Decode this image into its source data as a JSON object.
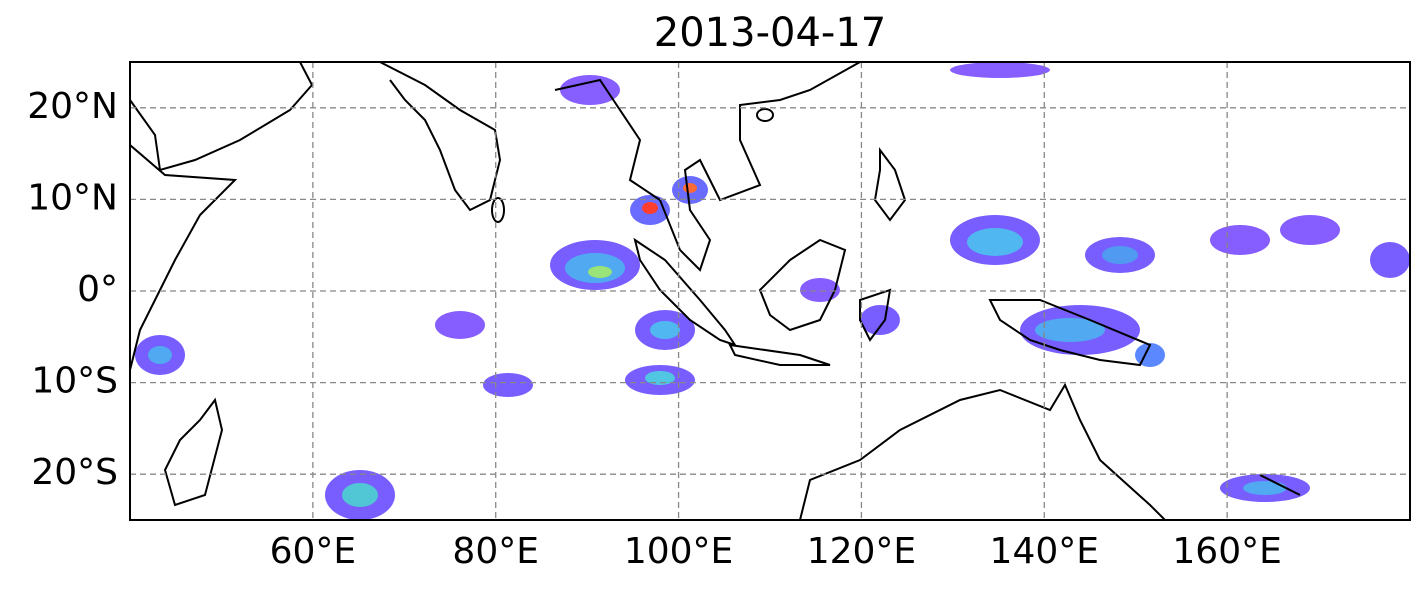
{
  "map": {
    "title": "2013-04-17",
    "lonlim": [
      40,
      180
    ],
    "latlim": [
      -25,
      25
    ],
    "lon_ticks": [
      {
        "value": 60,
        "label": "60°E"
      },
      {
        "value": 80,
        "label": "80°E"
      },
      {
        "value": 100,
        "label": "100°E"
      },
      {
        "value": 120,
        "label": "120°E"
      },
      {
        "value": 140,
        "label": "140°E"
      },
      {
        "value": 160,
        "label": "160°E"
      }
    ],
    "lat_ticks": [
      {
        "value": 20,
        "label": "20°N"
      },
      {
        "value": 10,
        "label": "10°N"
      },
      {
        "value": 0,
        "label": "0°"
      },
      {
        "value": -10,
        "label": "10°S"
      },
      {
        "value": -20,
        "label": "20°S"
      }
    ]
  }
}
